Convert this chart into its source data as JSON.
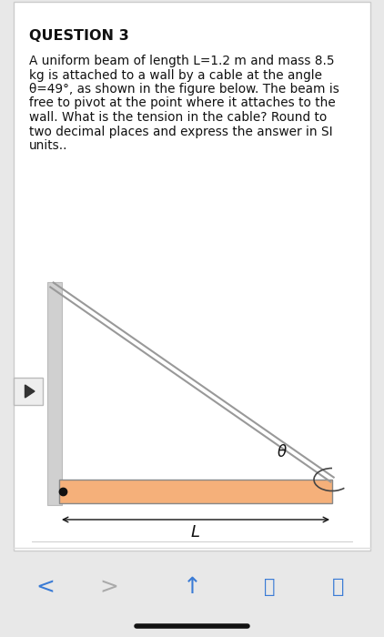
{
  "bg_color": "#e8e8e8",
  "page_bg": "#ffffff",
  "title": "QUESTION 3",
  "title_fontsize": 11.5,
  "body_text_lines": [
    "A uniform beam of length L=1.2 m and mass 8.5",
    "kg is attached to a wall by a cable at the angle",
    "θ=49°, as shown in the figure below. The beam is",
    "free to pivot at the point where it attaches to the",
    "wall. What is the tension in the cable? Round to",
    "two decimal places and express the answer in SI",
    "units.."
  ],
  "body_fontsize": 9.8,
  "wall_color": "#d0d0d0",
  "wall_edge_color": "#bbbbbb",
  "beam_fill_color": "#f5b07a",
  "beam_edge_color": "#888888",
  "cable_color": "#999999",
  "pivot_dot_color": "#111111",
  "theta_label": "θ",
  "L_label": "L",
  "arrow_color": "#111111",
  "outer_border_color": "#cccccc",
  "inner_bg_color": "#ffffff",
  "bottom_bar_color": "#f2f2f2",
  "icon_color": "#3a7bd5",
  "icon_gray": "#aaaaaa",
  "play_btn_color": "#eeeeee",
  "play_btn_edge": "#bbbbbb",
  "play_icon_color": "#333333",
  "separator_color": "#dddddd",
  "home_bar_color": "#111111"
}
